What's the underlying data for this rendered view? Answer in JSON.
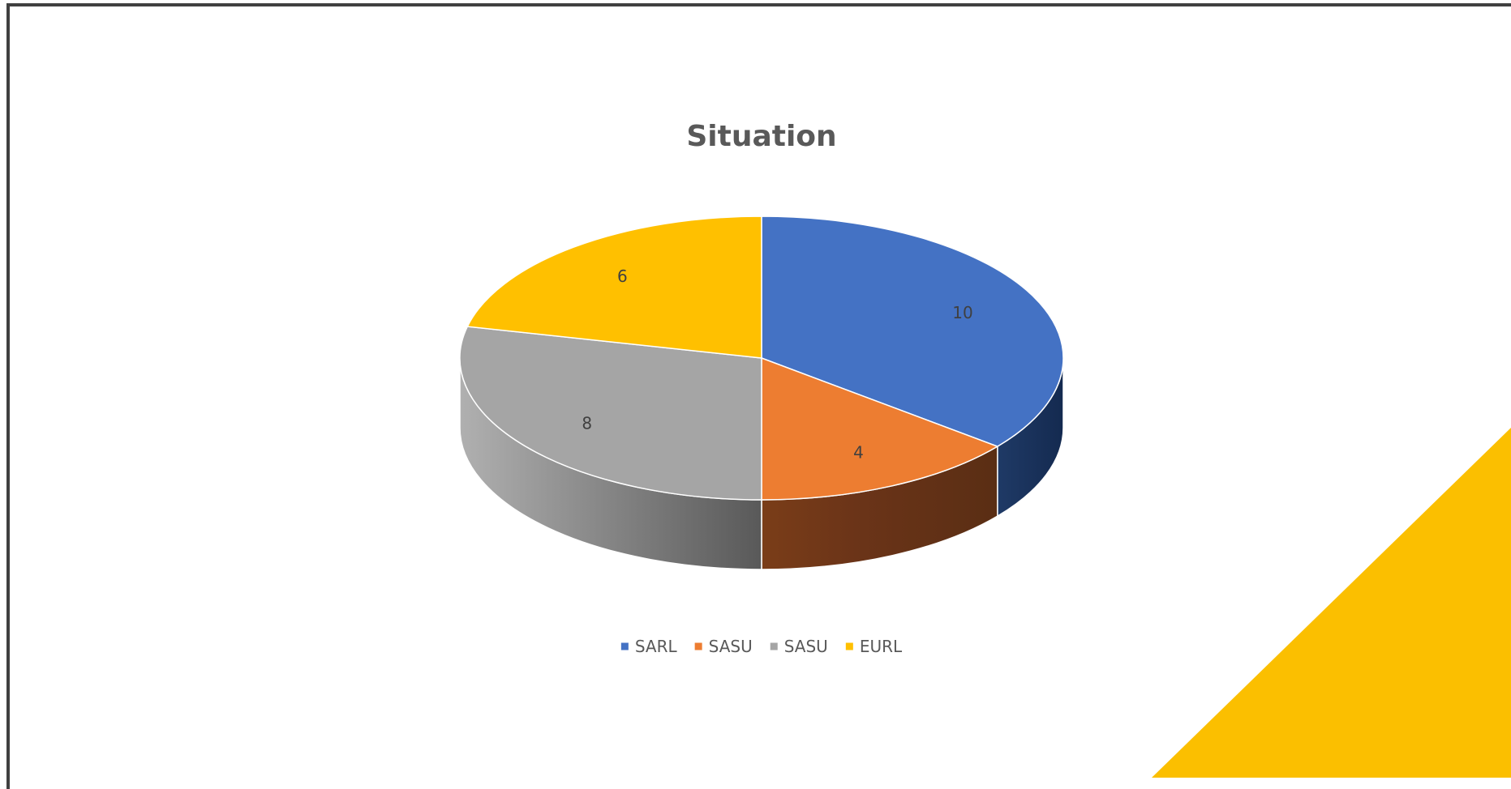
{
  "colors": {
    "accent_triangle": "#FBBF00",
    "frame": "#404040"
  },
  "chart_data": {
    "type": "pie",
    "title": "Situation",
    "categories": [
      "SARL",
      "SASU",
      "SASU",
      "EURL"
    ],
    "values": [
      10,
      4,
      8,
      6
    ],
    "data_labels": [
      "10",
      "4",
      "8",
      "6"
    ],
    "colors": [
      "#4472C4",
      "#ED7D31",
      "#A5A5A5",
      "#FFC000"
    ],
    "legend": {
      "placement": "bottom",
      "entries": [
        "SARL",
        "SASU",
        "SASU",
        "EURL"
      ]
    },
    "style": "3d"
  }
}
